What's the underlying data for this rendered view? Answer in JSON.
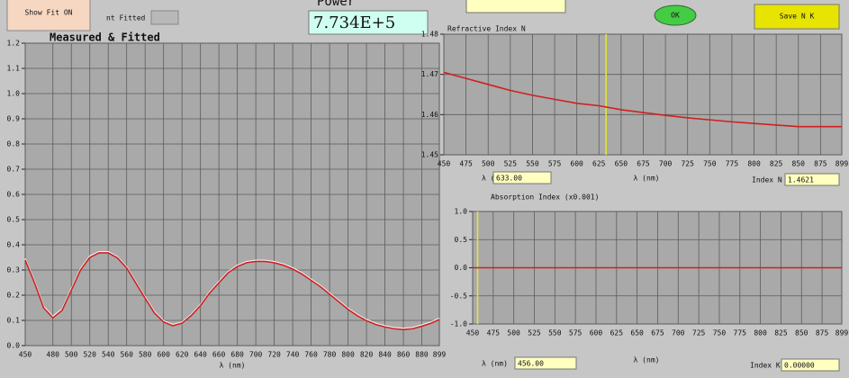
{
  "controls": {
    "show_fit": "Show Fit ON",
    "legend_fitted": "nt Fitted",
    "power_label": "Power",
    "power_value": "7.734E+5",
    "ok": "OK",
    "save": "Save N K"
  },
  "chart_data": [
    {
      "type": "line",
      "title": "Measured & Fitted",
      "xlabel": "λ (nm)",
      "x": [
        450,
        460,
        470,
        480,
        490,
        500,
        510,
        520,
        530,
        540,
        550,
        560,
        570,
        580,
        590,
        600,
        610,
        620,
        630,
        640,
        650,
        660,
        670,
        680,
        690,
        700,
        710,
        720,
        730,
        740,
        750,
        760,
        770,
        780,
        790,
        800,
        810,
        820,
        830,
        840,
        850,
        860,
        870,
        880,
        890,
        899
      ],
      "series": [
        {
          "name": "Measured",
          "color": "#f4f4f4",
          "values": [
            0.345,
            0.255,
            0.155,
            0.115,
            0.145,
            0.225,
            0.305,
            0.355,
            0.372,
            0.372,
            0.352,
            0.312,
            0.252,
            0.192,
            0.135,
            0.098,
            0.083,
            0.093,
            0.123,
            0.163,
            0.213,
            0.253,
            0.293,
            0.318,
            0.333,
            0.338,
            0.338,
            0.333,
            0.323,
            0.308,
            0.288,
            0.263,
            0.238,
            0.208,
            0.178,
            0.148,
            0.123,
            0.103,
            0.088,
            0.078,
            0.071,
            0.068,
            0.071,
            0.081,
            0.093,
            0.108
          ]
        },
        {
          "name": "Fitted",
          "color": "#d02020",
          "values": [
            0.34,
            0.25,
            0.15,
            0.11,
            0.14,
            0.22,
            0.3,
            0.35,
            0.368,
            0.368,
            0.348,
            0.308,
            0.248,
            0.188,
            0.13,
            0.094,
            0.079,
            0.089,
            0.119,
            0.159,
            0.209,
            0.249,
            0.289,
            0.314,
            0.329,
            0.334,
            0.334,
            0.329,
            0.319,
            0.304,
            0.284,
            0.259,
            0.234,
            0.204,
            0.174,
            0.144,
            0.119,
            0.099,
            0.084,
            0.074,
            0.067,
            0.064,
            0.067,
            0.077,
            0.089,
            0.104
          ]
        }
      ],
      "xlim": [
        450,
        899
      ],
      "ylim": [
        0,
        1.2
      ],
      "xticks": [
        450,
        480,
        500,
        520,
        540,
        560,
        580,
        600,
        620,
        640,
        660,
        680,
        700,
        720,
        740,
        760,
        780,
        800,
        820,
        840,
        860,
        880,
        899
      ],
      "yticks": [
        {
          "value": 0,
          "label": "0.0"
        },
        0.1,
        0.2,
        0.3,
        0.4,
        0.5,
        0.6,
        0.7,
        0.8,
        0.9,
        {
          "value": 1,
          "label": "1.0"
        },
        1.1,
        1.2
      ],
      "grid": true
    },
    {
      "type": "line",
      "title": "Refractive Index N",
      "xlabel": "λ (nm)",
      "x": [
        450,
        475,
        500,
        525,
        550,
        575,
        600,
        625,
        650,
        675,
        700,
        725,
        750,
        775,
        800,
        825,
        850,
        875,
        899
      ],
      "series": [
        {
          "name": "N",
          "color": "#d02020",
          "values": [
            1.4705,
            1.469,
            1.4675,
            1.466,
            1.4648,
            1.4638,
            1.4628,
            1.4622,
            1.4612,
            1.4605,
            1.4598,
            1.4592,
            1.4587,
            1.4582,
            1.4578,
            1.4574,
            1.457,
            1.457,
            1.457
          ]
        }
      ],
      "xlim": [
        450,
        899
      ],
      "ylim": [
        1.45,
        1.48
      ],
      "xticks": [
        450,
        475,
        500,
        525,
        550,
        575,
        600,
        625,
        650,
        675,
        700,
        725,
        750,
        775,
        800,
        825,
        850,
        875,
        899
      ],
      "yticks": [
        1.45,
        1.46,
        1.47,
        1.48
      ],
      "grid": true,
      "cursor_label": "λ (nm)",
      "cursor": {
        "value": 633,
        "label": "633.00"
      },
      "readout_label": "Index N",
      "readout": "1.4621"
    },
    {
      "type": "line",
      "title": "Absorption Index (x0.001)",
      "xlabel": "λ (nm)",
      "x": [
        450,
        899
      ],
      "series": [
        {
          "name": "K",
          "color": "#d02020",
          "values": [
            0,
            0
          ]
        }
      ],
      "xlim": [
        450,
        899
      ],
      "ylim": [
        -1,
        1
      ],
      "xticks": [
        450,
        475,
        500,
        525,
        550,
        575,
        600,
        625,
        650,
        675,
        700,
        725,
        750,
        775,
        800,
        825,
        850,
        875,
        899
      ],
      "yticks": [
        {
          "value": -1,
          "label": "-1.0"
        },
        -0.5,
        {
          "value": 0,
          "label": "0.0"
        },
        0.5,
        {
          "value": 1,
          "label": "1.0"
        }
      ],
      "grid": true,
      "cursor_label": "λ (nm)",
      "cursor": {
        "value": 456,
        "label": "456.00"
      },
      "readout_label": "Index K",
      "readout": "0.00000"
    }
  ]
}
